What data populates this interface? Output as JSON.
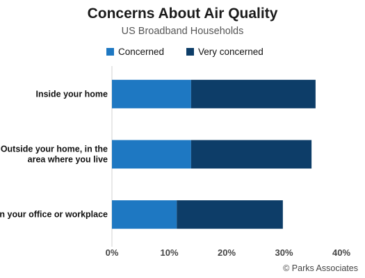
{
  "chart_data": {
    "type": "bar",
    "orientation": "horizontal",
    "stacked": true,
    "title": "Concerns About Air Quality",
    "subtitle": "US Broadband Households",
    "categories": [
      [
        "Inside your home"
      ],
      [
        "Outside your home, in the",
        "area where you live"
      ],
      [
        "In your office or workplace"
      ]
    ],
    "series": [
      {
        "name": "Concerned",
        "color": "#1e78c2",
        "values": [
          13.8,
          13.8,
          11.3
        ]
      },
      {
        "name": "Very concerned",
        "color": "#0d3d68",
        "values": [
          21.7,
          21.0,
          18.5
        ]
      }
    ],
    "xlim": [
      0,
      40
    ],
    "xticks": [
      0,
      10,
      20,
      30,
      40
    ],
    "tick_suffix": "%",
    "grid": false,
    "legend_position": "top"
  },
  "credit": "© Parks Associates"
}
